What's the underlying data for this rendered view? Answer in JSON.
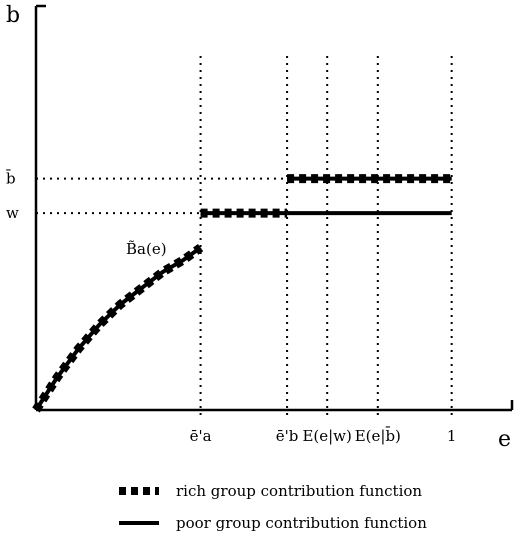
{
  "chart_data": {
    "type": "line",
    "x_axis_label": "e",
    "y_axis_label": "b",
    "xlim": [
      0,
      1
    ],
    "ylim": [
      0,
      1
    ],
    "y_reference_levels": [
      {
        "label": "b̄",
        "value": 0.57
      },
      {
        "label": "w",
        "value": 0.485
      }
    ],
    "x_reference_points": [
      {
        "label": "ē'a",
        "value": 0.39
      },
      {
        "label": "ē'b",
        "value": 0.595
      },
      {
        "label": "E(e|w)",
        "value": 0.69
      },
      {
        "label": "E(e|b̄)",
        "value": 0.81
      },
      {
        "label": "1",
        "value": 0.985
      }
    ],
    "curve_label": "B̃a(e)",
    "series": [
      {
        "name": "rich group contribution function",
        "style": "dashed-thick",
        "segments": [
          [
            [
              0,
              0
            ],
            [
              0.05,
              0.08
            ],
            [
              0.1,
              0.15
            ],
            [
              0.15,
              0.21
            ],
            [
              0.2,
              0.26
            ],
            [
              0.25,
              0.3
            ],
            [
              0.3,
              0.34
            ],
            [
              0.35,
              0.37
            ],
            [
              0.39,
              0.4
            ]
          ],
          [
            [
              0.39,
              0.485
            ],
            [
              0.595,
              0.485
            ]
          ],
          [
            [
              0.595,
              0.57
            ],
            [
              0.985,
              0.57
            ]
          ]
        ]
      },
      {
        "name": "poor group contribution function",
        "style": "solid",
        "segments": [
          [
            [
              0.595,
              0.485
            ],
            [
              0.985,
              0.485
            ]
          ]
        ]
      }
    ]
  },
  "legend": {
    "rich_label": "rich group contribution function",
    "poor_label": "poor group contribution function"
  }
}
